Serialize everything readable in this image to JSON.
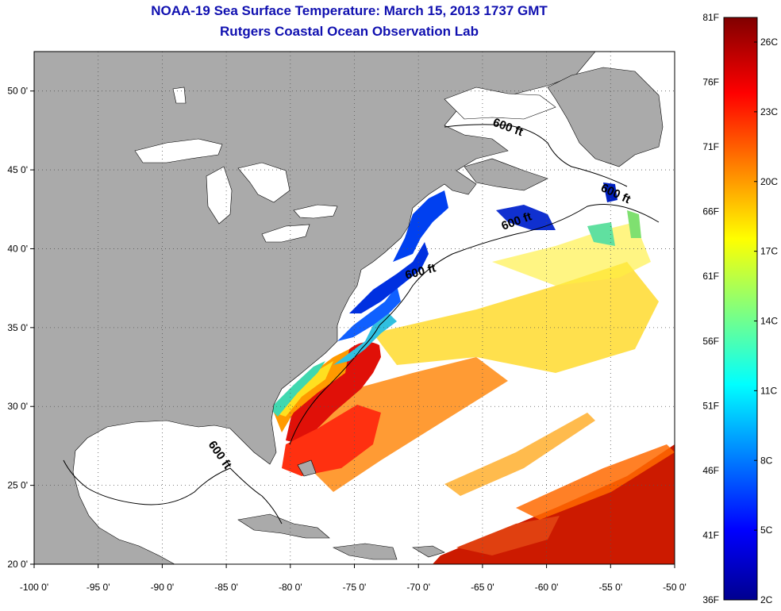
{
  "title": "NOAA-19 Sea Surface Temperature:  March 15, 2013 1737 GMT",
  "subtitle": "Rutgers Coastal Ocean Observation Lab",
  "map": {
    "lon_range": [
      -100,
      -50
    ],
    "lat_range": [
      20,
      52.5
    ],
    "lon_ticks": [
      {
        "v": -100,
        "label": "-100 0'"
      },
      {
        "v": -95,
        "label": "-95 0'"
      },
      {
        "v": -90,
        "label": "-90 0'"
      },
      {
        "v": -85,
        "label": "-85 0'"
      },
      {
        "v": -80,
        "label": "-80 0'"
      },
      {
        "v": -75,
        "label": "-75 0'"
      },
      {
        "v": -70,
        "label": "-70 0'"
      },
      {
        "v": -65,
        "label": "-65 0'"
      },
      {
        "v": -60,
        "label": "-60 0'"
      },
      {
        "v": -55,
        "label": "-55 0'"
      },
      {
        "v": -50,
        "label": "-50 0'"
      }
    ],
    "lat_ticks": [
      {
        "v": 20,
        "label": "20 0'"
      },
      {
        "v": 25,
        "label": "25 0'"
      },
      {
        "v": 30,
        "label": "30 0'"
      },
      {
        "v": 35,
        "label": "35 0'"
      },
      {
        "v": 40,
        "label": "40 0'"
      },
      {
        "v": 45,
        "label": "45 0'"
      },
      {
        "v": 50,
        "label": "50 0'"
      }
    ],
    "contour_labels": [
      "600 ft",
      "600 ft",
      "600 ft",
      "600 ft",
      "600 ft"
    ],
    "land_color": "#aaaaaa",
    "grid": true
  },
  "colorbar": {
    "f_labels": [
      "81F",
      "76F",
      "71F",
      "66F",
      "61F",
      "56F",
      "51F",
      "46F",
      "41F",
      "36F"
    ],
    "c_labels": [
      "26C",
      "23C",
      "20C",
      "17C",
      "14C",
      "11C",
      "8C",
      "5C",
      "2C"
    ]
  }
}
